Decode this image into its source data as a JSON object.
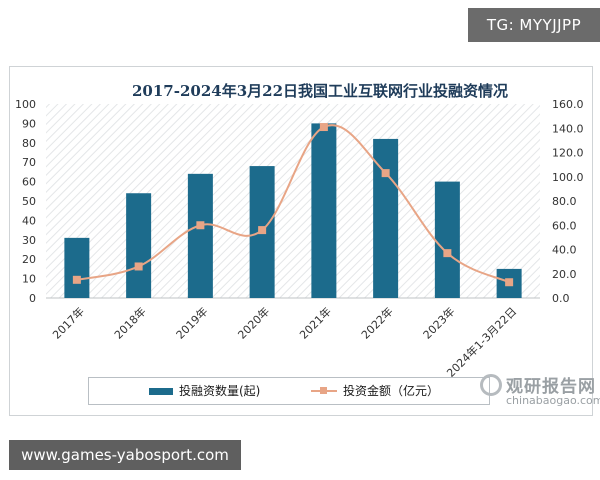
{
  "watermark_top": "TG: MYYJJPP",
  "watermark_bottom": "www.games-yabosport.com",
  "logo": {
    "cn": "观研报告网",
    "en": "chinabaogao.com"
  },
  "colors": {
    "bar": "#1c6b8c",
    "line": "#e8a586",
    "title": "#1f3c5a"
  },
  "chart_data": {
    "type": "bar",
    "title": "2017-2024年3月22日我国工业互联网行业投融资情况",
    "categories": [
      "2017年",
      "2018年",
      "2019年",
      "2020年",
      "2021年",
      "2022年",
      "2023年",
      "2024年1-3月22日"
    ],
    "series": [
      {
        "name": "投融资数量(起)",
        "type": "bar",
        "axis": "left",
        "values": [
          31,
          54,
          64,
          68,
          90,
          82,
          60,
          15
        ]
      },
      {
        "name": "投资金额（亿元）",
        "type": "line",
        "axis": "right",
        "values": [
          15,
          26,
          60,
          56,
          141,
          103,
          37,
          13
        ]
      }
    ],
    "y_left": {
      "min": 0,
      "max": 100,
      "ticks": [
        "0",
        "10",
        "20",
        "30",
        "40",
        "50",
        "60",
        "70",
        "80",
        "90",
        "100"
      ]
    },
    "y_right": {
      "min": 0,
      "max": 160,
      "ticks": [
        "0.0",
        "20.0",
        "40.0",
        "60.0",
        "80.0",
        "100.0",
        "120.0",
        "140.0",
        "160.0"
      ]
    },
    "grid": false,
    "legend_position": "bottom"
  }
}
